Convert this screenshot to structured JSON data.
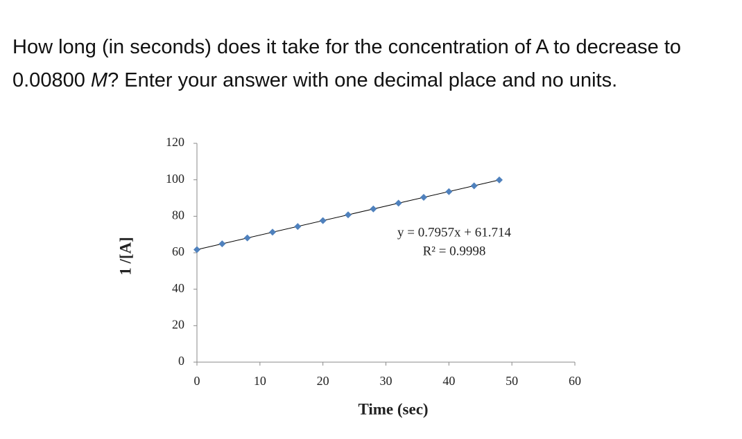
{
  "question": {
    "text_before": "How long (in seconds) does it take for the concentration of A to decrease to 0.00800 ",
    "italic": "M",
    "text_after": "? Enter your answer with one decimal place and no units."
  },
  "chart_data": {
    "type": "scatter",
    "x": [
      0,
      4,
      8,
      12,
      16,
      20,
      24,
      28,
      32,
      36,
      40,
      44,
      48
    ],
    "values": [
      61.7,
      64.9,
      68.1,
      71.3,
      74.4,
      77.6,
      80.8,
      84.0,
      87.2,
      90.4,
      93.5,
      96.7,
      99.9
    ],
    "color": "#4f81bd",
    "xlim": [
      0,
      60
    ],
    "xticks": [
      0,
      10,
      20,
      30,
      40,
      50,
      60
    ],
    "ylim": [
      0,
      120
    ],
    "yticks": [
      0,
      20,
      40,
      60,
      80,
      100,
      120
    ],
    "x_label": "Time (sec)",
    "y_label": "1 /[A]",
    "grid": false,
    "trendline": {
      "slope": 0.7957,
      "intercept": 61.714,
      "color": "#000000",
      "label": "y = 0.7957x + 61.714"
    },
    "r2_label": "R² = 0.9998"
  }
}
